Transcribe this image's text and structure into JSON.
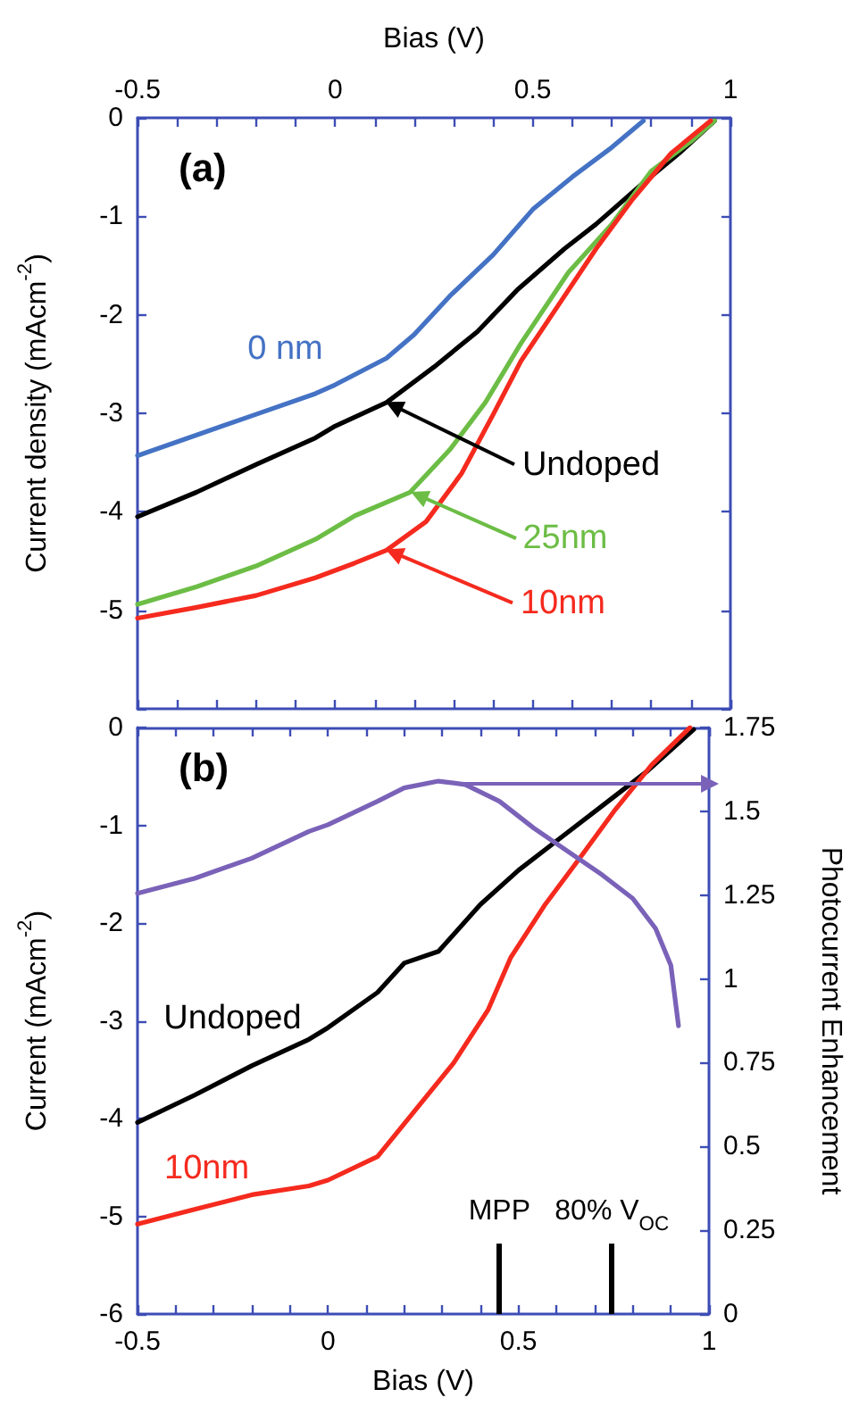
{
  "chart_data": [
    {
      "type": "line",
      "title": "(a)",
      "xlabel": "Bias (V)",
      "ylabel": "Current density (mAcm$^{-2}$)",
      "xlim": [
        -0.5,
        1
      ],
      "xticks": [
        -0.5,
        {
          "value": -0.4,
          "label": null
        },
        {
          "value": -0.3,
          "label": null
        },
        {
          "value": -0.2,
          "label": null
        },
        {
          "value": -0.1,
          "label": null
        },
        0,
        {
          "value": 0.1,
          "label": null
        },
        {
          "value": 0.2,
          "label": null
        },
        {
          "value": 0.3,
          "label": null
        },
        {
          "value": 0.4,
          "label": null
        },
        0.5,
        {
          "value": 0.6,
          "label": null
        },
        {
          "value": 0.7,
          "label": null
        },
        {
          "value": 0.8,
          "label": null
        },
        {
          "value": 0.9,
          "label": null
        },
        1
      ],
      "ylim": [
        -6,
        0
      ],
      "yticks": [
        0,
        -1,
        -2,
        -3,
        -4,
        -5,
        {
          "value": -6,
          "label": null
        }
      ],
      "series": [
        {
          "name": "0 nm",
          "color": "#4472c4",
          "x": [
            -0.5,
            -0.35,
            -0.2,
            -0.05,
            0,
            0.13,
            0.2,
            0.29,
            0.4,
            0.5,
            0.6,
            0.7,
            0.78
          ],
          "values": [
            -3.43,
            -3.22,
            -3.01,
            -2.8,
            -2.71,
            -2.44,
            -2.2,
            -1.81,
            -1.39,
            -0.93,
            -0.6,
            -0.3,
            -0.03
          ]
        },
        {
          "name": "Undoped",
          "color": "#000000",
          "x": [
            -0.5,
            -0.35,
            -0.2,
            -0.05,
            0,
            0.13,
            0.25,
            0.36,
            0.46,
            0.58,
            0.66,
            0.78,
            0.87,
            0.96
          ],
          "values": [
            -4.05,
            -3.8,
            -3.52,
            -3.25,
            -3.13,
            -2.89,
            -2.53,
            -2.17,
            -1.75,
            -1.33,
            -1.08,
            -0.66,
            -0.36,
            -0.03
          ]
        },
        {
          "name": "25nm",
          "color": "#6cbd45",
          "x": [
            -0.5,
            -0.35,
            -0.2,
            -0.05,
            0.05,
            0.19,
            0.29,
            0.38,
            0.47,
            0.59,
            0.7,
            0.8,
            0.9,
            0.96
          ],
          "values": [
            -4.94,
            -4.76,
            -4.55,
            -4.28,
            -4.04,
            -3.8,
            -3.37,
            -2.89,
            -2.29,
            -1.57,
            -1.08,
            -0.54,
            -0.24,
            -0.03
          ]
        },
        {
          "name": "10nm",
          "color": "#f52a1e",
          "x": [
            -0.5,
            -0.35,
            -0.2,
            -0.05,
            0.05,
            0.13,
            0.23,
            0.32,
            0.4,
            0.47,
            0.57,
            0.66,
            0.75,
            0.85,
            0.95
          ],
          "values": [
            -5.08,
            -4.97,
            -4.85,
            -4.67,
            -4.52,
            -4.39,
            -4.1,
            -3.61,
            -3.01,
            -2.47,
            -1.87,
            -1.33,
            -0.84,
            -0.36,
            -0.03
          ]
        }
      ]
    },
    {
      "type": "line",
      "title": "(b)",
      "xlabel": "Bias (V)",
      "ylabel": "Current (mAcm$^{-2}$)",
      "y2label": "Photocurrent Enhancement",
      "xlim": [
        -0.5,
        1
      ],
      "xticks": [
        -0.5,
        {
          "value": -0.4,
          "label": null
        },
        {
          "value": -0.3,
          "label": null
        },
        {
          "value": -0.2,
          "label": null
        },
        {
          "value": -0.1,
          "label": null
        },
        0,
        {
          "value": 0.1,
          "label": null
        },
        {
          "value": 0.2,
          "label": null
        },
        {
          "value": 0.3,
          "label": null
        },
        {
          "value": 0.4,
          "label": null
        },
        0.5,
        {
          "value": 0.6,
          "label": null
        },
        {
          "value": 0.7,
          "label": null
        },
        {
          "value": 0.8,
          "label": null
        },
        {
          "value": 0.9,
          "label": null
        },
        1
      ],
      "ylim": [
        -6,
        0
      ],
      "yticks": [
        0,
        -1,
        -2,
        -3,
        -4,
        -5,
        -6
      ],
      "y2lim": [
        0,
        1.75
      ],
      "y2ticks": [
        0,
        0.25,
        0.5,
        0.75,
        1,
        1.25,
        1.5,
        1.75
      ],
      "ref_lines": [
        {
          "axis": "x",
          "value": 0.45,
          "label": "MPP",
          "color": "#000000"
        },
        {
          "axis": "x",
          "value": 0.745,
          "label": "80% V$_{OC}$",
          "color": "#000000"
        }
      ],
      "series": [
        {
          "name": "Undoped",
          "color": "#000000",
          "x": [
            -0.5,
            -0.35,
            -0.2,
            -0.05,
            0,
            0.13,
            0.2,
            0.29,
            0.4,
            0.5,
            0.6,
            0.72,
            0.84,
            0.96
          ],
          "values": [
            -4.04,
            -3.76,
            -3.46,
            -3.19,
            -3.07,
            -2.71,
            -2.41,
            -2.29,
            -1.81,
            -1.46,
            -1.16,
            -0.8,
            -0.44,
            -0.02
          ]
        },
        {
          "name": "10nm",
          "color": "#f52a1e",
          "x": [
            -0.5,
            -0.35,
            -0.2,
            -0.05,
            0,
            0.13,
            0.23,
            0.33,
            0.42,
            0.48,
            0.57,
            0.66,
            0.75,
            0.85,
            0.95
          ],
          "values": [
            -5.08,
            -4.93,
            -4.78,
            -4.69,
            -4.63,
            -4.39,
            -3.91,
            -3.43,
            -2.89,
            -2.35,
            -1.81,
            -1.34,
            -0.86,
            -0.38,
            0
          ]
        },
        {
          "color": "#7a62b8",
          "axis": "y2",
          "x": [
            -0.5,
            -0.35,
            -0.2,
            -0.05,
            0,
            0.13,
            0.2,
            0.29,
            0.36,
            0.45,
            0.54,
            0.63,
            0.72,
            0.8,
            0.86,
            0.9,
            0.92
          ],
          "values": [
            1.255,
            1.3,
            1.36,
            1.44,
            1.46,
            1.53,
            1.57,
            1.59,
            1.58,
            1.53,
            1.45,
            1.38,
            1.31,
            1.24,
            1.15,
            1.04,
            0.86
          ]
        }
      ]
    }
  ]
}
